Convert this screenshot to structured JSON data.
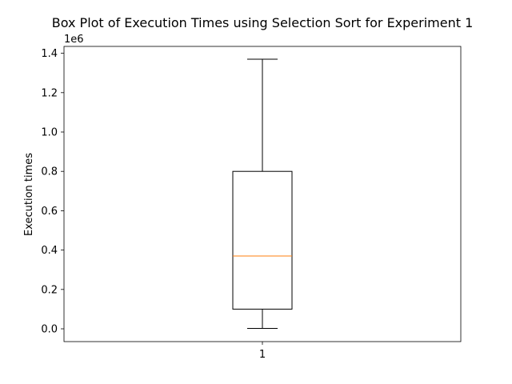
{
  "chart_data": {
    "type": "box",
    "title": "Box Plot of Execution Times using Selection Sort for Experiment 1",
    "xlabel": "",
    "ylabel": "Execution times",
    "y_offset_label": "1e6",
    "categories": [
      "1"
    ],
    "ylim": [
      -65000,
      1435000
    ],
    "yticks": [
      0,
      200000,
      400000,
      600000,
      800000,
      1000000,
      1200000,
      1400000
    ],
    "ytick_labels": [
      "0.0",
      "0.2",
      "0.4",
      "0.6",
      "0.8",
      "1.0",
      "1.2",
      "1.4"
    ],
    "boxes": [
      {
        "name": "1",
        "whisker_low": 2000,
        "q1": 100000,
        "median": 370000,
        "q3": 800000,
        "whisker_high": 1370000
      }
    ],
    "colors": {
      "median": "#ff7f0e",
      "box": "#000000"
    },
    "grid": false,
    "legend": "none"
  }
}
